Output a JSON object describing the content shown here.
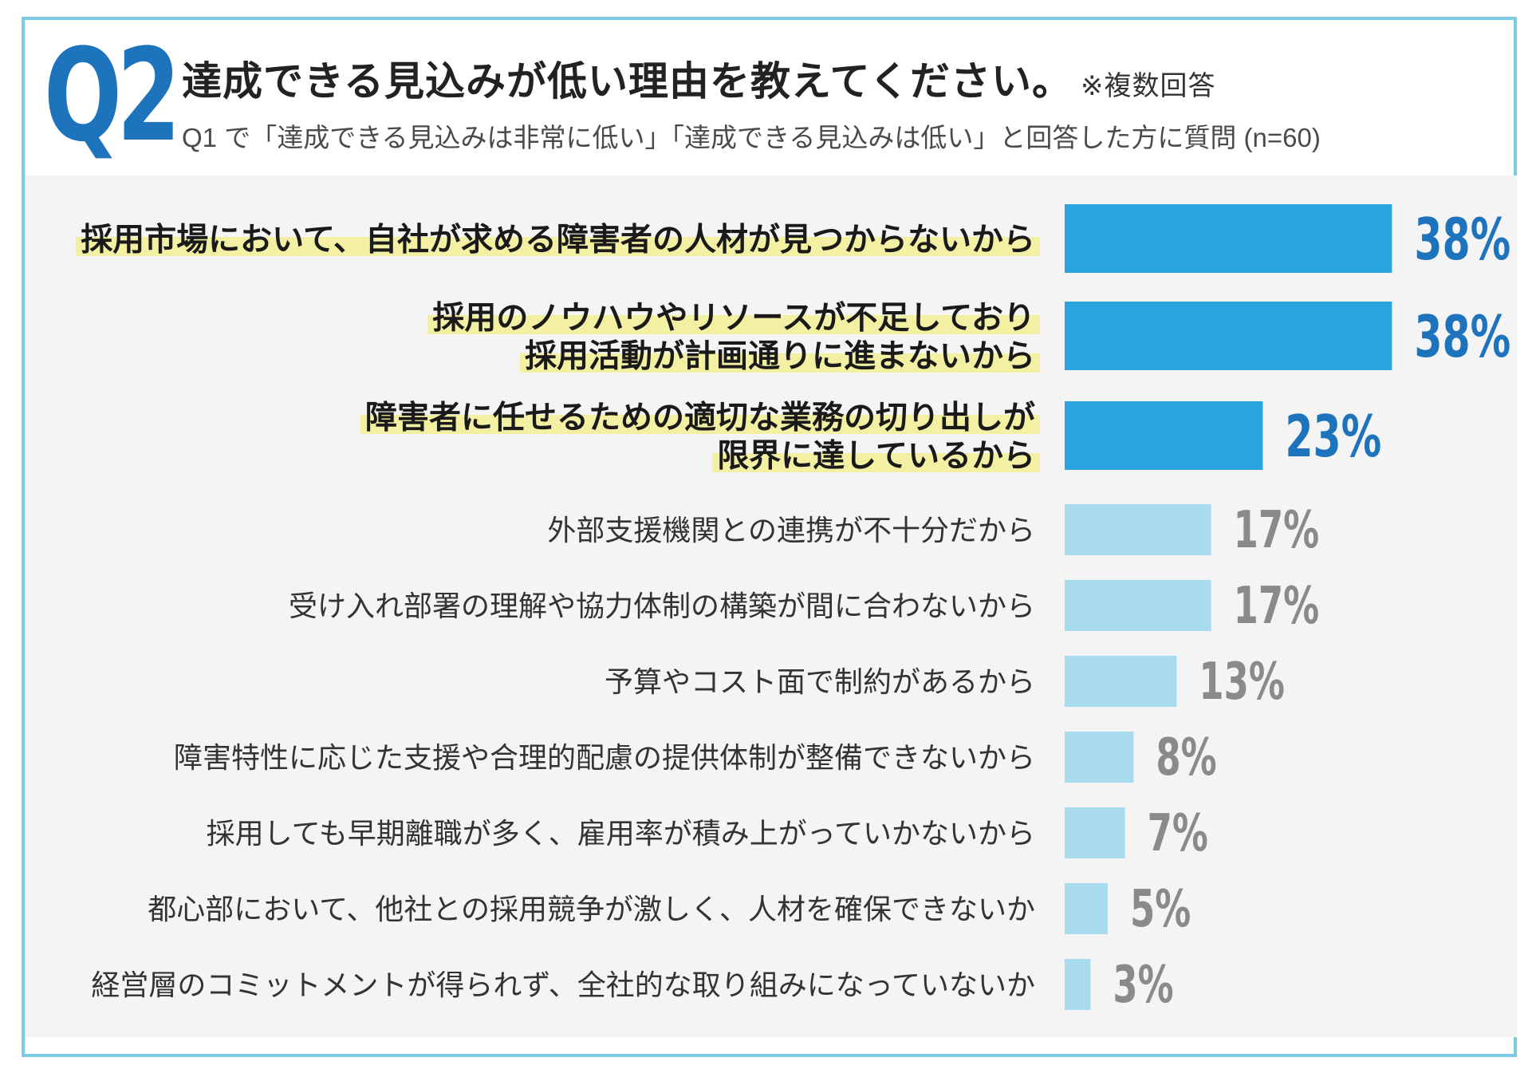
{
  "header": {
    "q_number": "Q2",
    "title": "達成できる見込みが低い理由を教えてください。",
    "title_note": "※複数回答",
    "subtitle": "Q1 で「達成できる見込みは非常に低い」「達成できる見込みは低い」と回答した方に質問 (n=60)"
  },
  "colors": {
    "accent": "#1d74bd",
    "bar_dark": "#2aa3de",
    "bar_light": "#a8dbee",
    "highlight": "#f3f0a3",
    "value_gray": "#8a8a8a",
    "border": "#7ec9e3",
    "panel_bg": "#f4f4f4"
  },
  "chart_data": {
    "type": "bar",
    "orientation": "horizontal",
    "title": "達成できる見込みが低い理由を教えてください。",
    "unit": "%",
    "xlim": [
      0,
      100
    ],
    "categories": [
      [
        "採用市場において、自社が求める障害者の人材が見つからないから"
      ],
      [
        "採用のノウハウやリソースが不足しており",
        "採用活動が計画通りに進まないから"
      ],
      [
        "障害者に任せるための適切な業務の切り出しが",
        "限界に達しているから"
      ],
      [
        "外部支援機関との連携が不十分だから"
      ],
      [
        "受け入れ部署の理解や協力体制の構築が間に合わないから"
      ],
      [
        "予算やコスト面で制約があるから"
      ],
      [
        "障害特性に応じた支援や合理的配慮の提供体制が整備できないから"
      ],
      [
        "採用しても早期離職が多く、雇用率が積み上がっていかないから"
      ],
      [
        "都心部において、他社との採用競争が激しく、人材を確保できないか"
      ],
      [
        "経営層のコミットメントが得られず、全社的な取り組みになっていないか"
      ]
    ],
    "values": [
      38,
      38,
      23,
      17,
      17,
      13,
      8,
      7,
      5,
      3
    ],
    "value_labels": [
      "38%",
      "38%",
      "23%",
      "17%",
      "17%",
      "13%",
      "8%",
      "7%",
      "5%",
      "3%"
    ],
    "highlighted": [
      true,
      true,
      true,
      false,
      false,
      false,
      false,
      false,
      false,
      false
    ]
  }
}
